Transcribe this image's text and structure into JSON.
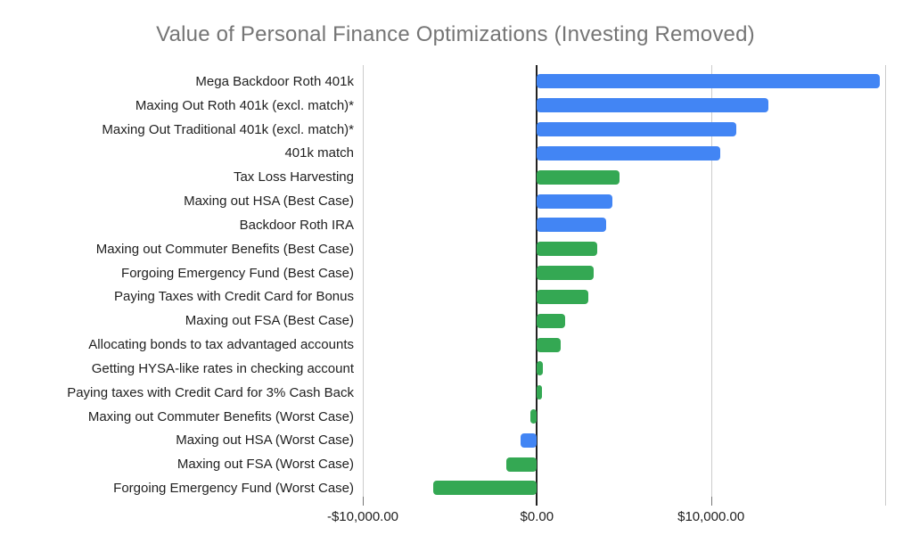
{
  "chart_data": {
    "type": "bar",
    "orientation": "horizontal",
    "title": "Value of Personal Finance Optimizations (Investing Removed)",
    "categories": [
      "Mega Backdoor Roth 401k",
      "Maxing Out Roth 401k (excl. match)*",
      "Maxing Out Traditional 401k (excl. match)*",
      "401k match",
      "Tax Loss Harvesting",
      "Maxing out HSA (Best Case)",
      "Backdoor Roth IRA",
      "Maxing out Commuter Benefits (Best Case)",
      "Forgoing Emergency Fund (Best Case)",
      "Paying Taxes with Credit Card for Bonus",
      "Maxing out FSA (Best Case)",
      "Allocating bonds to tax advantaged accounts",
      "Getting HYSA-like rates in checking account",
      "Paying taxes with Credit Card for 3% Cash Back",
      "Maxing out Commuter Benefits (Worst Case)",
      "Maxing out HSA (Worst Case)",
      "Maxing out FSA (Worst Case)",
      "Forgoing Emergency Fund (Worst Case)"
    ],
    "values": [
      19700,
      13290,
      11470,
      10520,
      4760,
      4330,
      4000,
      3450,
      3280,
      2930,
      1620,
      1360,
      320,
      290,
      -400,
      -920,
      -1740,
      -5970
    ],
    "colors": [
      "#4285f4",
      "#4285f4",
      "#4285f4",
      "#4285f4",
      "#34a853",
      "#4285f4",
      "#4285f4",
      "#34a853",
      "#34a853",
      "#34a853",
      "#34a853",
      "#34a853",
      "#34a853",
      "#34a853",
      "#34a853",
      "#4285f4",
      "#34a853",
      "#34a853"
    ],
    "xlim": [
      -10000,
      20000
    ],
    "gridlines": [
      -10000,
      0,
      10000,
      20000
    ],
    "x_ticks": [
      {
        "value": -10000,
        "label": "-$10,000.00"
      },
      {
        "value": 0,
        "label": "$0.00"
      },
      {
        "value": 10000,
        "label": "$10,000.00"
      }
    ],
    "grid": "vertical-only",
    "legend": "none",
    "title_color": "#757575",
    "label_color": "#212121",
    "gridline_color": "#cccccc",
    "zero_line_color": "#212121"
  }
}
